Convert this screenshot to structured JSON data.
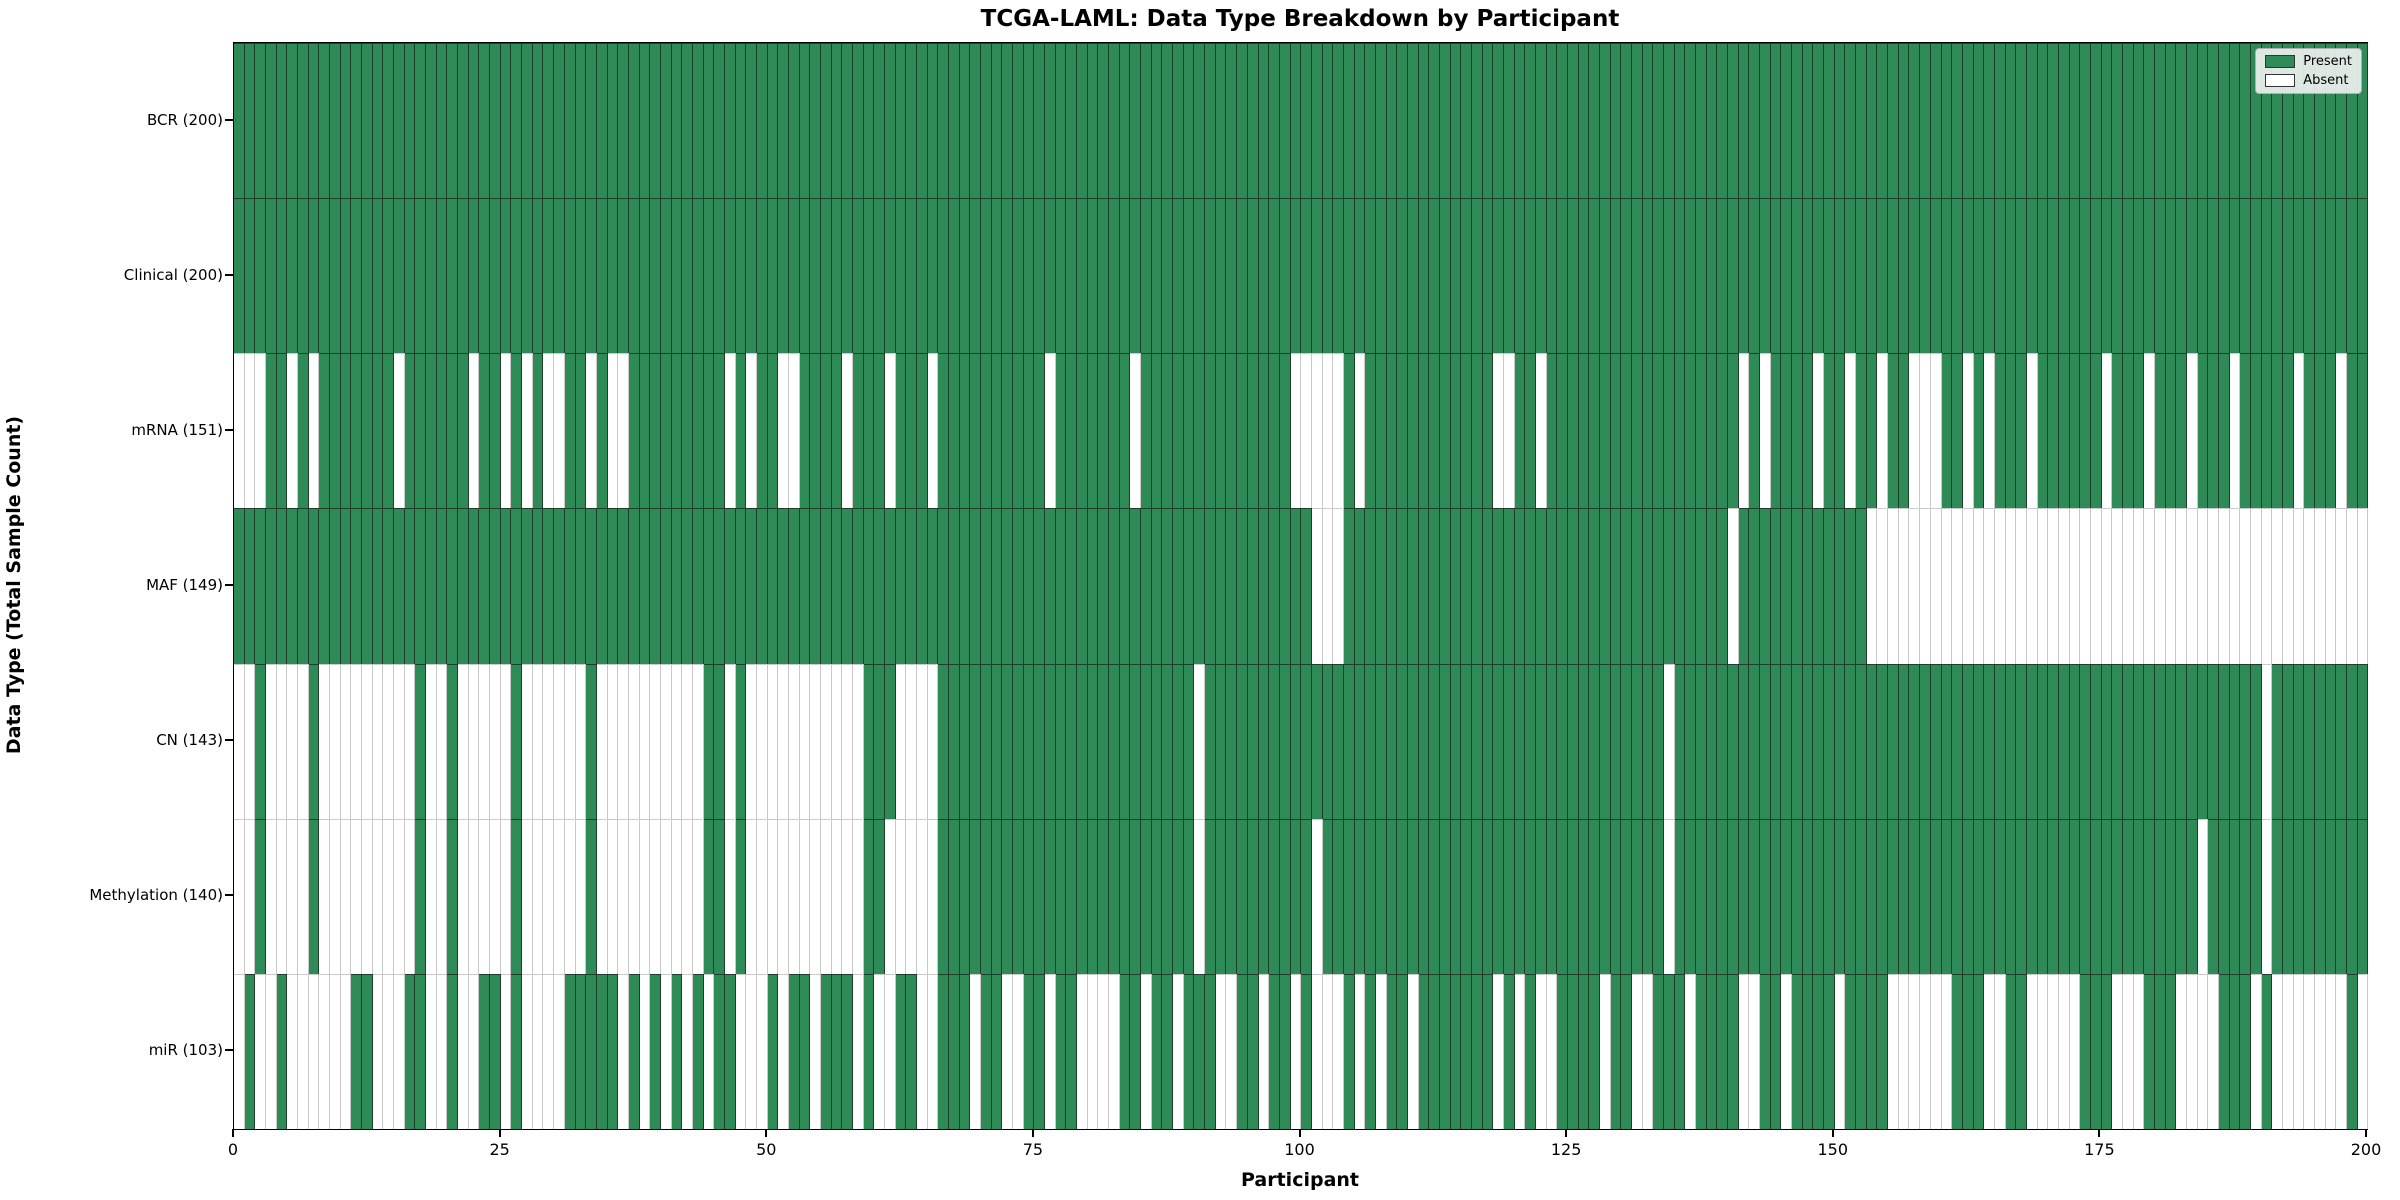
{
  "figure": {
    "background": "#ffffff",
    "present_color": "#2E8B57",
    "absent_color": "#ffffff",
    "present_edge_color": "#1e3d2b",
    "absent_edge_color": "#c9c9c9"
  },
  "chart_data": {
    "type": "heatmap",
    "title": "TCGA-LAML: Data Type Breakdown by Participant",
    "xlabel": "Participant",
    "ylabel": "Data Type (Total Sample Count)",
    "x_range": [
      0,
      200
    ],
    "n_participants": 200,
    "x_ticks": [
      0,
      25,
      50,
      75,
      100,
      125,
      150,
      175,
      200
    ],
    "grid": false,
    "legend_position": "upper right",
    "legend": [
      {
        "label": "Present",
        "color": "#2E8B57"
      },
      {
        "label": "Absent",
        "color": "#ffffff"
      }
    ],
    "value_encoding": {
      "1": "Present",
      "0": "Absent"
    },
    "rows": [
      {
        "label": "BCR (200)",
        "name": "BCR",
        "total": 200,
        "presence_chunks": [
          "1111111111",
          "1111111111",
          "1111111111",
          "1111111111",
          "1111111111",
          "1111111111",
          "1111111111",
          "1111111111",
          "1111111111",
          "1111111111",
          "1111111111",
          "1111111111",
          "1111111111",
          "1111111111",
          "1111111111",
          "1111111111",
          "1111111111",
          "1111111111",
          "1111111111",
          "1111111111"
        ]
      },
      {
        "label": "Clinical (200)",
        "name": "Clinical",
        "total": 200,
        "presence_chunks": [
          "1111111111",
          "1111111111",
          "1111111111",
          "1111111111",
          "1111111111",
          "1111111111",
          "1111111111",
          "1111111111",
          "1111111111",
          "1111111111",
          "1111111111",
          "1111111111",
          "1111111111",
          "1111111111",
          "1111111111",
          "1111111111",
          "1111111111",
          "1111111111",
          "1111111111",
          "1111111111"
        ]
      },
      {
        "label": "mRNA (151)",
        "name": "mRNA",
        "total": 151,
        "presence_chunks": [
          "0001101011",
          "1111101111",
          "1101101010",
          "0110100111",
          "1111110101",
          "1001111011",
          "1011101111",
          "1111110111",
          "1111011111",
          "1111111110",
          "0000101111",
          "1111111100",
          "1101111111",
          "1111111111",
          "1010111101",
          "1011011000",
          "1101011101",
          "1111101110",
          "1110111011",
          "1110111011"
        ]
      },
      {
        "label": "MAF (149)",
        "name": "MAF",
        "total": 149,
        "presence_chunks": [
          "1111111111",
          "1111111111",
          "1111111111",
          "1111111111",
          "1111111111",
          "1111111111",
          "1111111111",
          "1111111111",
          "1111111111",
          "1111111111",
          "1000111111",
          "1111111111",
          "1111111111",
          "1111111111",
          "0111111111",
          "1110000000",
          "0000000000",
          "0000000000",
          "0000000000",
          "0000000000"
        ]
      },
      {
        "label": "CN (143)",
        "name": "CN",
        "total": 143,
        "presence_chunks": [
          "0010000100",
          "0000000100",
          "1000001000",
          "0001000000",
          "0000110100",
          "0000000001",
          "1100001111",
          "1111111111",
          "1111111111",
          "0111111111",
          "1111111111",
          "1111111111",
          "1111111111",
          "1111011111",
          "1111111111",
          "1111111111",
          "1111111111",
          "1111111111",
          "1111111111",
          "0111111111"
        ]
      },
      {
        "label": "Methylation (140)",
        "name": "Methylation",
        "total": 140,
        "presence_chunks": [
          "0010000100",
          "0000000100",
          "1000001000",
          "0001000000",
          "0000110100",
          "0000000001",
          "1000001111",
          "1111111111",
          "1111111111",
          "0111111111",
          "1011111111",
          "1111111111",
          "1111111111",
          "1111011111",
          "1111111111",
          "1111111111",
          "1111111111",
          "1111111111",
          "1111011111",
          "0111111111"
        ]
      },
      {
        "label": "miR (103)",
        "name": "miR",
        "total": 103,
        "presence_chunks": [
          "0100100000",
          "0110001100",
          "1001101000",
          "0111110101",
          "0101011000",
          "1011011101",
          "0011001110",
          "1100110110",
          "0001101101",
          "1100110110",
          "1000101011",
          "0111111101",
          "0100111101",
          "1001110111",
          "1001101111",
          "0111100000",
          "0111001100",
          "0001110001",
          "1100001110",
          "1000000010"
        ]
      }
    ]
  }
}
